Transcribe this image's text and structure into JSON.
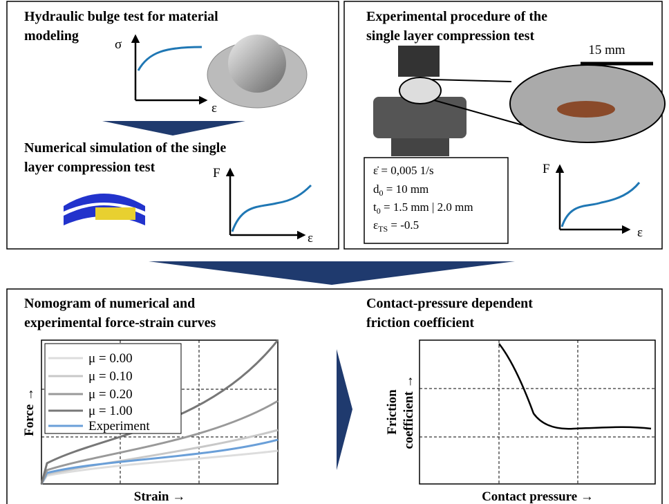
{
  "top_left": {
    "title_lines": [
      "Hydraulic bulge test for material",
      "modeling"
    ],
    "stress_symbol": "σ",
    "strain_symbol": "ε",
    "subtitle_lines": [
      "Numerical simulation of the single",
      "layer compression test"
    ],
    "force_symbol": "F",
    "strain_symbol_2": "ε"
  },
  "top_right": {
    "title_lines": [
      "Experimental procedure of the",
      "single layer compression test"
    ],
    "scale_bar": "15 mm",
    "params": [
      {
        "text": "ε̇ = 0,005 1/s"
      },
      {
        "symbol": "d",
        "subscript": "0",
        "rest": " = 10 mm"
      },
      {
        "symbol": "t",
        "subscript": "0",
        "rest": " = 1.5 mm | 2.0 mm"
      },
      {
        "symbol": "ε",
        "subscript": "TS",
        "rest": " = -0.5"
      }
    ],
    "force_symbol": "F",
    "strain_symbol": "ε"
  },
  "bottom_left": {
    "title_lines": [
      "Nomogram of numerical and",
      "experimental force-strain curves"
    ],
    "legend": [
      "μ = 0.00",
      "μ = 0.10",
      "μ = 0.20",
      "μ = 1.00",
      "Experiment"
    ],
    "y_label": "Force →",
    "x_label": "Strain →"
  },
  "bottom_right": {
    "title_lines": [
      "Contact-pressure dependent",
      "friction coefficient"
    ],
    "y_label_lines": [
      "Friction",
      "coefficient →"
    ],
    "x_label": "Contact pressure →"
  }
}
